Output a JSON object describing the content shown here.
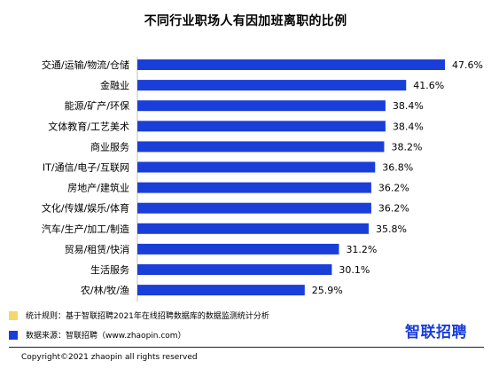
{
  "chart_data": {
    "type": "bar",
    "orientation": "horizontal",
    "title": "不同行业职场人有因加班离职的比例",
    "categories": [
      "交通/运输/物流/仓储",
      "金融业",
      "能源/矿产/环保",
      "文体教育/工艺美术",
      "商业服务",
      "IT/通信/电子/互联网",
      "房地产/建筑业",
      "文化/传媒/娱乐/体育",
      "汽车/生产/加工/制造",
      "贸易/租赁/快消",
      "生活服务",
      "农/林/牧/渔"
    ],
    "values": [
      47.6,
      41.6,
      38.4,
      38.4,
      38.2,
      36.8,
      36.2,
      36.2,
      35.8,
      31.2,
      30.1,
      25.9
    ],
    "value_labels": [
      "47.6%",
      "41.6%",
      "38.4%",
      "38.4%",
      "38.2%",
      "36.8%",
      "36.2%",
      "36.2%",
      "35.8%",
      "31.2%",
      "30.1%",
      "25.9%"
    ],
    "xlim": [
      0,
      47.6
    ],
    "bar_color": "#1a3ed8",
    "grid": false
  },
  "notes": {
    "method": "统计规则：基于智联招聘2021年在线招聘数据库的数据监测统计分析",
    "method_color": "#f5d86a",
    "source": "数据来源：智联招聘（www.zhaopin.com）",
    "source_color": "#1a3ed8"
  },
  "logo_text": "智联招聘",
  "copyright": "Copyright©2021 zhaopin  all rights reserved"
}
